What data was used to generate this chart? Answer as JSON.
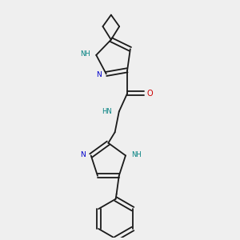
{
  "background_color": "#efefef",
  "bond_color": "#1a1a1a",
  "nitrogen_color": "#0000cc",
  "oxygen_color": "#cc0000",
  "teal_color": "#008080",
  "line_width": 1.3,
  "figsize": [
    3.0,
    3.0
  ],
  "dpi": 100,
  "xlim": [
    0.55,
    1.95
  ],
  "ylim": [
    0.1,
    2.95
  ]
}
